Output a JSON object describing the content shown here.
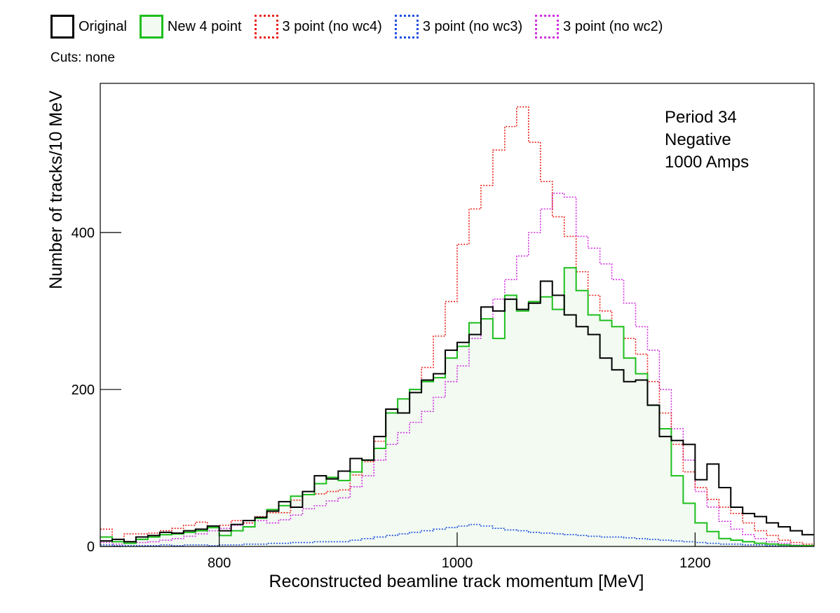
{
  "chart_data": {
    "type": "line",
    "subtype": "step-histogram",
    "title": "",
    "xlabel": "Reconstructed beamline track momentum [MeV]",
    "ylabel": "Number of tracks/10 MeV",
    "xlim": [
      700,
      1300
    ],
    "ylim": [
      0,
      590
    ],
    "xticks": [
      800,
      1000,
      1200
    ],
    "yticks": [
      0,
      200,
      400
    ],
    "bin_width": 10,
    "x_bin_lower_edges": [
      700,
      710,
      720,
      730,
      740,
      750,
      760,
      770,
      780,
      790,
      800,
      810,
      820,
      830,
      840,
      850,
      860,
      870,
      880,
      890,
      900,
      910,
      920,
      930,
      940,
      950,
      960,
      970,
      980,
      990,
      1000,
      1010,
      1020,
      1030,
      1040,
      1050,
      1060,
      1070,
      1080,
      1090,
      1100,
      1110,
      1120,
      1130,
      1140,
      1150,
      1160,
      1170,
      1180,
      1190,
      1200,
      1210,
      1220,
      1230,
      1240,
      1250,
      1260,
      1270,
      1280,
      1290
    ],
    "grid": false,
    "legend_position": "top",
    "cuts_label": "Cuts: none",
    "annotation": [
      "Period 34",
      "Negative",
      "1000 Amps"
    ],
    "series": [
      {
        "name": "Original",
        "color": "#000000",
        "style": "solid",
        "fill": "none",
        "values": [
          7,
          9,
          6,
          12,
          14,
          18,
          17,
          20,
          22,
          26,
          20,
          28,
          33,
          37,
          45,
          57,
          50,
          70,
          90,
          86,
          96,
          112,
          110,
          140,
          175,
          170,
          196,
          212,
          220,
          250,
          260,
          270,
          305,
          300,
          315,
          302,
          310,
          338,
          320,
          295,
          280,
          270,
          240,
          225,
          210,
          212,
          180,
          140,
          135,
          130,
          85,
          105,
          75,
          50,
          42,
          38,
          30,
          25,
          20,
          15
        ]
      },
      {
        "name": "New 4 point",
        "color": "#1dbf1d",
        "style": "solid",
        "fill": "#f2faf2",
        "values": [
          12,
          6,
          4,
          9,
          12,
          15,
          16,
          18,
          20,
          24,
          14,
          20,
          25,
          36,
          47,
          52,
          64,
          66,
          80,
          88,
          84,
          95,
          110,
          125,
          170,
          188,
          200,
          210,
          215,
          240,
          255,
          285,
          290,
          265,
          320,
          300,
          312,
          318,
          302,
          355,
          326,
          295,
          288,
          280,
          240,
          220,
          180,
          150,
          90,
          55,
          30,
          19,
          10,
          8,
          6,
          4,
          3,
          2,
          1,
          1
        ]
      },
      {
        "name": "3 point (no wc4)",
        "color": "#e8231c",
        "style": "dotted",
        "fill": "none",
        "values": [
          22,
          9,
          16,
          16,
          17,
          20,
          23,
          27,
          31,
          26,
          27,
          33,
          30,
          38,
          43,
          43,
          59,
          66,
          67,
          70,
          72,
          91,
          108,
          134,
          170,
          188,
          200,
          228,
          268,
          312,
          385,
          430,
          460,
          505,
          535,
          560,
          515,
          465,
          420,
          395,
          350,
          320,
          300,
          280,
          265,
          245,
          210,
          170,
          130,
          95,
          75,
          60,
          50,
          42,
          30,
          20,
          14,
          8,
          5,
          3
        ]
      },
      {
        "name": "3 point (no wc3)",
        "color": "#1c4fe0",
        "style": "dotted",
        "fill": "none",
        "values": [
          2,
          1,
          1,
          1,
          1,
          2,
          1,
          2,
          2,
          1,
          2,
          2,
          3,
          3,
          4,
          4,
          5,
          5,
          6,
          6,
          6,
          8,
          10,
          12,
          14,
          16,
          18,
          20,
          22,
          24,
          26,
          28,
          26,
          23,
          21,
          20,
          18,
          17,
          16,
          15,
          14,
          13,
          12,
          12,
          11,
          10,
          9,
          8,
          7,
          6,
          5,
          4,
          3,
          3,
          2,
          2,
          1,
          1,
          1,
          1
        ]
      },
      {
        "name": "3 point (no wc2)",
        "color": "#d030e0",
        "style": "dotted",
        "fill": "none",
        "values": [
          5,
          3,
          4,
          5,
          6,
          8,
          10,
          13,
          16,
          20,
          23,
          27,
          30,
          33,
          30,
          34,
          40,
          48,
          52,
          58,
          62,
          76,
          90,
          110,
          130,
          145,
          158,
          172,
          190,
          210,
          230,
          265,
          290,
          315,
          340,
          370,
          400,
          430,
          450,
          445,
          395,
          380,
          360,
          340,
          310,
          280,
          250,
          200,
          150,
          110,
          70,
          50,
          32,
          22,
          15,
          10,
          6,
          4,
          2,
          1
        ]
      }
    ]
  }
}
